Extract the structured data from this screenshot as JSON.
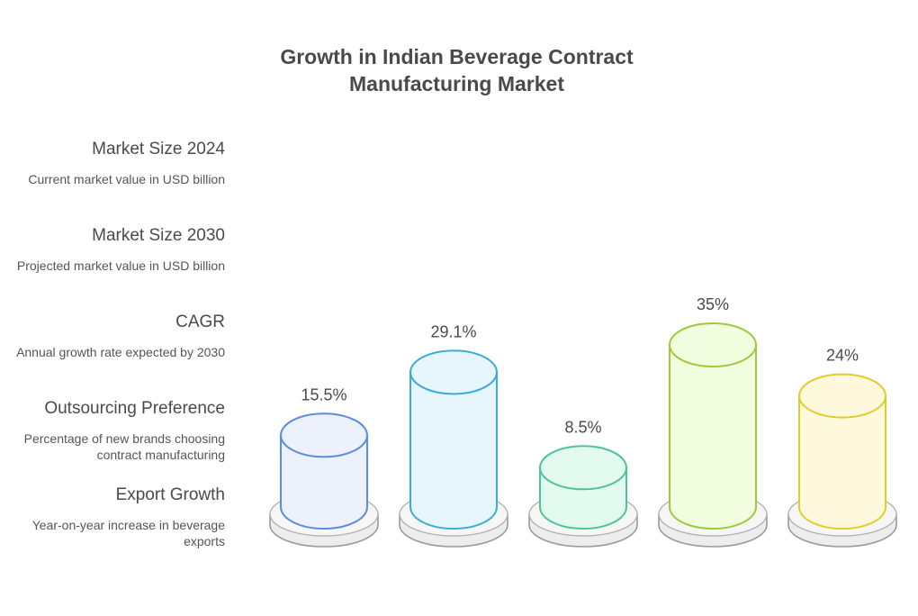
{
  "title_lines": [
    "Growth in Indian Beverage Contract",
    "Manufacturing Market"
  ],
  "chart_data": {
    "type": "bar",
    "title": "Growth in Indian Beverage Contract Manufacturing Market",
    "categories": [
      "Market Size 2024",
      "Market Size 2030",
      "CAGR",
      "Outsourcing Preference",
      "Export Growth"
    ],
    "values": [
      15.5,
      29.1,
      8.5,
      35,
      24
    ],
    "value_labels": [
      "15.5%",
      "29.1%",
      "8.5%",
      "35%",
      "24%"
    ],
    "descriptions": [
      "Current market value in USD billion",
      "Projected market value in USD billion",
      "Annual growth rate expected by 2030",
      "Percentage of new brands choosing contract manufacturing",
      "Year-on-year increase in beverage exports"
    ],
    "colors": [
      {
        "fill": "#ecf1fc",
        "stroke": "#5b8dde"
      },
      {
        "fill": "#e6f6fc",
        "stroke": "#3aacd8"
      },
      {
        "fill": "#e2faf0",
        "stroke": "#4cc690"
      },
      {
        "fill": "#f3fde0",
        "stroke": "#9ccb3a"
      },
      {
        "fill": "#fef9dc",
        "stroke": "#e0cd2a"
      }
    ],
    "legend_placement": "left",
    "grid": false
  }
}
